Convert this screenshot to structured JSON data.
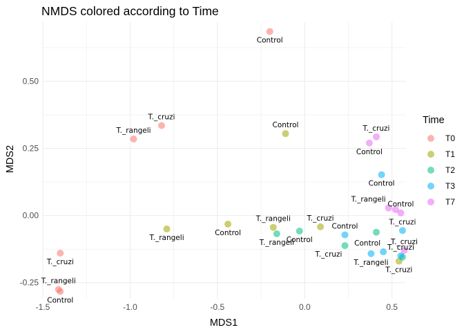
{
  "chart_data": {
    "type": "scatter",
    "title": "NMDS colored according to Time",
    "xlabel": "MDS1",
    "ylabel": "MDS2",
    "xlim": [
      -1.5,
      0.58
    ],
    "ylim": [
      -0.31,
      0.72
    ],
    "x_ticks": [
      -1.5,
      -1.0,
      -0.5,
      0.0,
      0.5
    ],
    "x_tick_labels": [
      "-1.5",
      "-1.0",
      "-0.5",
      "0.0",
      "0.5"
    ],
    "y_ticks": [
      -0.25,
      0.0,
      0.25,
      0.5
    ],
    "y_tick_labels": [
      "-0.25",
      "0.00",
      "0.25",
      "0.50"
    ],
    "grid": true,
    "legend": {
      "title": "Time",
      "position": "right",
      "entries": [
        {
          "name": "T0",
          "color": "#F8766D"
        },
        {
          "name": "T1",
          "color": "#A3A500"
        },
        {
          "name": "T2",
          "color": "#00BF7D"
        },
        {
          "name": "T3",
          "color": "#00B0F6"
        },
        {
          "name": "T7",
          "color": "#E76BF3"
        }
      ]
    },
    "series": [
      {
        "name": "T0",
        "color": "#F8766D",
        "points": [
          {
            "x": -0.2,
            "y": 0.685,
            "label": "Control",
            "label_pos": "below"
          },
          {
            "x": -0.82,
            "y": 0.335,
            "label": "T._cruzi",
            "label_pos": "above"
          },
          {
            "x": -0.98,
            "y": 0.285,
            "label": "T._rangeli",
            "label_pos": "above"
          },
          {
            "x": -1.4,
            "y": -0.14,
            "label": "T._cruzi",
            "label_pos": "below"
          },
          {
            "x": -1.41,
            "y": -0.275,
            "label": "T._rangeli",
            "label_pos": "above"
          },
          {
            "x": -1.4,
            "y": -0.283,
            "label": "Control",
            "label_pos": "below"
          }
        ]
      },
      {
        "name": "T1",
        "color": "#A3A500",
        "points": [
          {
            "x": -0.11,
            "y": 0.305,
            "label": "Control",
            "label_pos": "above"
          },
          {
            "x": -0.79,
            "y": -0.05,
            "label": "T._rangeli",
            "label_pos": "below"
          },
          {
            "x": -0.44,
            "y": -0.032,
            "label": "Control",
            "label_pos": "below"
          },
          {
            "x": -0.18,
            "y": -0.044,
            "label": "T._rangeli",
            "label_pos": "above"
          },
          {
            "x": 0.09,
            "y": -0.042,
            "label": "T._cruzi",
            "label_pos": "above"
          },
          {
            "x": 0.54,
            "y": -0.17,
            "label": "T._cruzi",
            "label_pos": "below"
          }
        ]
      },
      {
        "name": "T2",
        "color": "#00BF7D",
        "points": [
          {
            "x": -0.16,
            "y": -0.068,
            "label": "T._rangeli",
            "label_pos": "below"
          },
          {
            "x": -0.03,
            "y": -0.058,
            "label": "Control",
            "label_pos": "below"
          },
          {
            "x": 0.23,
            "y": -0.112,
            "label": "T._cruzi",
            "label_pos": "below-left"
          },
          {
            "x": 0.41,
            "y": -0.062,
            "label": "",
            "label_pos": "none"
          },
          {
            "x": 0.56,
            "y": -0.155,
            "label": "",
            "label_pos": "none"
          }
        ]
      },
      {
        "name": "T3",
        "color": "#00B0F6",
        "points": [
          {
            "x": 0.44,
            "y": 0.152,
            "label": "Control",
            "label_pos": "below"
          },
          {
            "x": 0.23,
            "y": -0.072,
            "label": "Control",
            "label_pos": "above"
          },
          {
            "x": 0.38,
            "y": -0.142,
            "label": "T._rangeli",
            "label_pos": "below"
          },
          {
            "x": 0.45,
            "y": -0.135,
            "label": "Control",
            "label_pos": "above-left"
          },
          {
            "x": 0.56,
            "y": -0.056,
            "label": "T._cruzi",
            "label_pos": "above"
          },
          {
            "x": 0.55,
            "y": -0.15,
            "label": "T._cruzi",
            "label_pos": "above"
          }
        ]
      },
      {
        "name": "T7",
        "color": "#E76BF3",
        "points": [
          {
            "x": 0.41,
            "y": 0.293,
            "label": "T._cruzi",
            "label_pos": "above"
          },
          {
            "x": 0.37,
            "y": 0.27,
            "label": "Control",
            "label_pos": "below"
          },
          {
            "x": 0.48,
            "y": 0.028,
            "label": "T._rangeli",
            "label_pos": "above-left"
          },
          {
            "x": 0.52,
            "y": 0.022,
            "label": "",
            "label_pos": "none"
          },
          {
            "x": 0.55,
            "y": 0.01,
            "label": "Control",
            "label_pos": "above"
          },
          {
            "x": 0.57,
            "y": -0.13,
            "label": "T._cruzi",
            "label_pos": "above"
          }
        ]
      }
    ]
  }
}
